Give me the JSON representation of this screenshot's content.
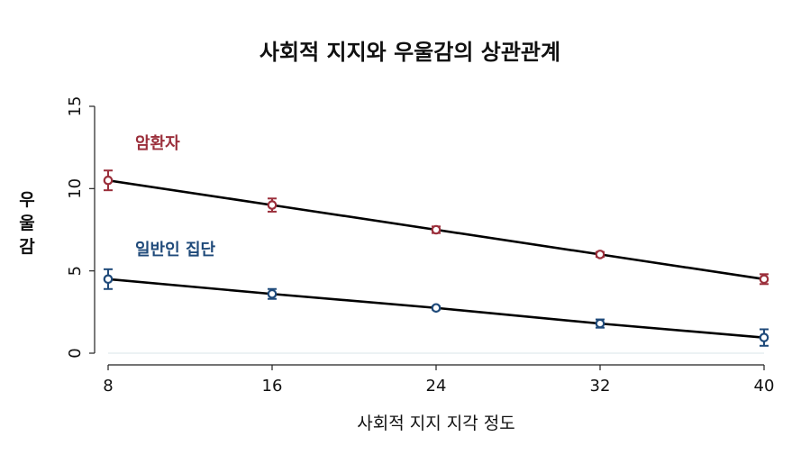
{
  "chart_data": {
    "type": "line",
    "title": "사회적 지지와 우울감의 상관관계",
    "xlabel": "사회적 지지 지각 정도",
    "ylabel": "우\n울\n감",
    "xlim": [
      8,
      40
    ],
    "ylim": [
      0,
      15
    ],
    "x_ticks": [
      8,
      16,
      24,
      32,
      40
    ],
    "y_ticks": [
      0,
      5,
      10,
      15
    ],
    "grid": false,
    "series": [
      {
        "name": "암환자",
        "color": "#9b2f3b",
        "x": [
          8,
          16,
          24,
          32,
          40
        ],
        "y": [
          10.5,
          9.0,
          7.5,
          6.0,
          4.5
        ],
        "ci_low": [
          9.9,
          8.6,
          7.3,
          5.85,
          4.2
        ],
        "ci_high": [
          11.1,
          9.4,
          7.7,
          6.15,
          4.8
        ]
      },
      {
        "name": "일반인 집단",
        "color": "#1f4a7a",
        "x": [
          8,
          16,
          24,
          32,
          40
        ],
        "y": [
          4.5,
          3.6,
          2.75,
          1.8,
          0.95
        ],
        "ci_low": [
          3.9,
          3.3,
          2.65,
          1.55,
          0.45
        ],
        "ci_high": [
          5.1,
          3.9,
          2.85,
          2.05,
          1.45
        ]
      }
    ]
  }
}
